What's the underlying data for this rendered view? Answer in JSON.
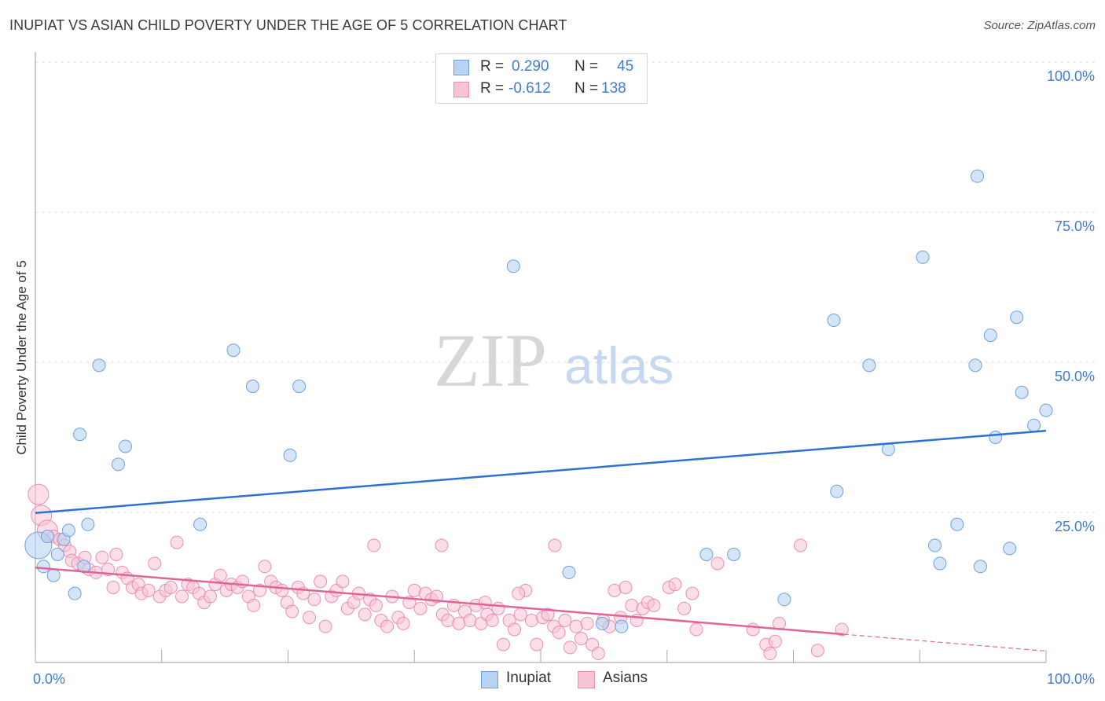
{
  "header": {
    "title": "INUPIAT VS ASIAN CHILD POVERTY UNDER THE AGE OF 5 CORRELATION CHART",
    "source": "Source: ZipAtlas.com"
  },
  "watermark": {
    "zip": "ZIP",
    "atlas": "atlas"
  },
  "legend": {
    "rows": [
      {
        "r_label": "R =",
        "r_value": "0.290",
        "n_label": "N =",
        "n_value": "45"
      },
      {
        "r_label": "R =",
        "r_value": "-0.612",
        "n_label": "N =",
        "n_value": "138"
      }
    ],
    "bottom": [
      {
        "label": "Inupiat"
      },
      {
        "label": "Asians"
      }
    ]
  },
  "colors": {
    "inupiat_fill": "#b8d3f2",
    "inupiat_stroke": "#6fa0dc",
    "inupiat_line": "#2e72cf",
    "asian_fill": "#f8c3d3",
    "asian_stroke": "#ea8fae",
    "asian_line": "#e0649a",
    "tick_text": "#3f7bd4",
    "grid": "#dddddd"
  },
  "chart_data": {
    "type": "scatter",
    "title": "INUPIAT VS ASIAN CHILD POVERTY UNDER THE AGE OF 5 CORRELATION CHART",
    "xlabel": "",
    "ylabel": "Child Poverty Under the Age of 5",
    "xlim": [
      0,
      100
    ],
    "ylim": [
      0,
      100
    ],
    "x_tick_labels": [
      "0.0%",
      "100.0%"
    ],
    "y_ticks": [
      25,
      50,
      75,
      100
    ],
    "y_tick_labels": [
      "25.0%",
      "50.0%",
      "75.0%",
      "100.0%"
    ],
    "grid": true,
    "legend_position": "top-center",
    "series": [
      {
        "name": "Inupiat",
        "r": 0.29,
        "n": 45,
        "trend": {
          "x": [
            0,
            100
          ],
          "y": [
            24.9,
            38.6
          ]
        },
        "points": [
          {
            "x": 0.3,
            "y": 19.5,
            "s": 3
          },
          {
            "x": 0.8,
            "y": 16.0,
            "s": 1
          },
          {
            "x": 1.2,
            "y": 21.0,
            "s": 1
          },
          {
            "x": 1.8,
            "y": 14.5,
            "s": 1
          },
          {
            "x": 2.2,
            "y": 18.0,
            "s": 1
          },
          {
            "x": 2.8,
            "y": 20.5,
            "s": 1
          },
          {
            "x": 3.3,
            "y": 22.0,
            "s": 1
          },
          {
            "x": 3.9,
            "y": 11.5,
            "s": 1
          },
          {
            "x": 4.4,
            "y": 38.0,
            "s": 1
          },
          {
            "x": 4.8,
            "y": 16.0,
            "s": 1
          },
          {
            "x": 5.2,
            "y": 23.0,
            "s": 1
          },
          {
            "x": 6.3,
            "y": 49.5,
            "s": 1
          },
          {
            "x": 8.2,
            "y": 33.0,
            "s": 1
          },
          {
            "x": 8.9,
            "y": 36.0,
            "s": 1
          },
          {
            "x": 16.3,
            "y": 23.0,
            "s": 1
          },
          {
            "x": 19.6,
            "y": 52.0,
            "s": 1
          },
          {
            "x": 21.5,
            "y": 46.0,
            "s": 1
          },
          {
            "x": 25.2,
            "y": 34.5,
            "s": 1
          },
          {
            "x": 26.1,
            "y": 46.0,
            "s": 1
          },
          {
            "x": 47.3,
            "y": 66.0,
            "s": 1
          },
          {
            "x": 52.8,
            "y": 15.0,
            "s": 1
          },
          {
            "x": 56.1,
            "y": 6.5,
            "s": 1
          },
          {
            "x": 58.0,
            "y": 6.0,
            "s": 1
          },
          {
            "x": 66.4,
            "y": 18.0,
            "s": 1
          },
          {
            "x": 69.1,
            "y": 18.0,
            "s": 1
          },
          {
            "x": 74.1,
            "y": 10.5,
            "s": 1
          },
          {
            "x": 79.0,
            "y": 57.0,
            "s": 1
          },
          {
            "x": 79.3,
            "y": 28.5,
            "s": 1
          },
          {
            "x": 82.5,
            "y": 49.5,
            "s": 1
          },
          {
            "x": 84.4,
            "y": 35.5,
            "s": 1
          },
          {
            "x": 87.8,
            "y": 67.5,
            "s": 1
          },
          {
            "x": 89.0,
            "y": 19.5,
            "s": 1
          },
          {
            "x": 89.5,
            "y": 16.5,
            "s": 1
          },
          {
            "x": 91.2,
            "y": 23.0,
            "s": 1
          },
          {
            "x": 93.0,
            "y": 49.5,
            "s": 1
          },
          {
            "x": 93.2,
            "y": 81.0,
            "s": 1
          },
          {
            "x": 93.5,
            "y": 16.0,
            "s": 1
          },
          {
            "x": 94.5,
            "y": 54.5,
            "s": 1
          },
          {
            "x": 95.0,
            "y": 37.5,
            "s": 1
          },
          {
            "x": 96.4,
            "y": 19.0,
            "s": 1
          },
          {
            "x": 97.1,
            "y": 57.5,
            "s": 1
          },
          {
            "x": 97.6,
            "y": 45.0,
            "s": 1
          },
          {
            "x": 98.8,
            "y": 39.5,
            "s": 1
          },
          {
            "x": 100.0,
            "y": 42.0,
            "s": 1
          }
        ]
      },
      {
        "name": "Asians",
        "r": -0.612,
        "n": 138,
        "trend": {
          "x": [
            0,
            80
          ],
          "y": [
            15.8,
            4.7
          ]
        },
        "trend_dashed": {
          "x": [
            80,
            100
          ],
          "y": [
            4.7,
            1.9
          ]
        },
        "points": [
          {
            "x": 0.3,
            "y": 28.0,
            "s": 2
          },
          {
            "x": 0.6,
            "y": 24.5,
            "s": 2
          },
          {
            "x": 1.2,
            "y": 22.0,
            "s": 2
          },
          {
            "x": 1.8,
            "y": 21.0,
            "s": 1
          },
          {
            "x": 2.4,
            "y": 20.5,
            "s": 1
          },
          {
            "x": 2.9,
            "y": 19.5,
            "s": 1
          },
          {
            "x": 3.4,
            "y": 18.5,
            "s": 1
          },
          {
            "x": 3.6,
            "y": 17.0,
            "s": 1
          },
          {
            "x": 4.2,
            "y": 16.5,
            "s": 1
          },
          {
            "x": 4.9,
            "y": 17.5,
            "s": 1
          },
          {
            "x": 5.3,
            "y": 15.5,
            "s": 1
          },
          {
            "x": 6.0,
            "y": 15.0,
            "s": 1
          },
          {
            "x": 6.6,
            "y": 17.5,
            "s": 1
          },
          {
            "x": 7.2,
            "y": 15.5,
            "s": 1
          },
          {
            "x": 7.7,
            "y": 12.5,
            "s": 1
          },
          {
            "x": 8.0,
            "y": 18.0,
            "s": 1
          },
          {
            "x": 8.6,
            "y": 15.0,
            "s": 1
          },
          {
            "x": 9.1,
            "y": 14.0,
            "s": 1
          },
          {
            "x": 9.6,
            "y": 12.5,
            "s": 1
          },
          {
            "x": 10.2,
            "y": 13.0,
            "s": 1
          },
          {
            "x": 10.5,
            "y": 11.5,
            "s": 1
          },
          {
            "x": 11.2,
            "y": 12.0,
            "s": 1
          },
          {
            "x": 11.8,
            "y": 16.5,
            "s": 1
          },
          {
            "x": 12.3,
            "y": 11.0,
            "s": 1
          },
          {
            "x": 12.9,
            "y": 12.0,
            "s": 1
          },
          {
            "x": 13.4,
            "y": 12.5,
            "s": 1
          },
          {
            "x": 14.0,
            "y": 20.0,
            "s": 1
          },
          {
            "x": 14.5,
            "y": 11.0,
            "s": 1
          },
          {
            "x": 15.1,
            "y": 13.0,
            "s": 1
          },
          {
            "x": 15.6,
            "y": 12.5,
            "s": 1
          },
          {
            "x": 16.2,
            "y": 11.5,
            "s": 1
          },
          {
            "x": 16.7,
            "y": 10.0,
            "s": 1
          },
          {
            "x": 17.3,
            "y": 11.0,
            "s": 1
          },
          {
            "x": 17.8,
            "y": 13.0,
            "s": 1
          },
          {
            "x": 18.3,
            "y": 14.5,
            "s": 1
          },
          {
            "x": 18.9,
            "y": 12.0,
            "s": 1
          },
          {
            "x": 19.4,
            "y": 13.0,
            "s": 1
          },
          {
            "x": 20.0,
            "y": 12.5,
            "s": 1
          },
          {
            "x": 20.5,
            "y": 13.5,
            "s": 1
          },
          {
            "x": 21.1,
            "y": 11.0,
            "s": 1
          },
          {
            "x": 21.6,
            "y": 9.5,
            "s": 1
          },
          {
            "x": 22.2,
            "y": 12.0,
            "s": 1
          },
          {
            "x": 22.7,
            "y": 16.0,
            "s": 1
          },
          {
            "x": 23.3,
            "y": 13.5,
            "s": 1
          },
          {
            "x": 23.8,
            "y": 12.5,
            "s": 1
          },
          {
            "x": 24.4,
            "y": 12.0,
            "s": 1
          },
          {
            "x": 24.9,
            "y": 10.0,
            "s": 1
          },
          {
            "x": 25.4,
            "y": 8.5,
            "s": 1
          },
          {
            "x": 26.0,
            "y": 12.5,
            "s": 1
          },
          {
            "x": 26.5,
            "y": 11.5,
            "s": 1
          },
          {
            "x": 27.1,
            "y": 7.5,
            "s": 1
          },
          {
            "x": 27.6,
            "y": 10.5,
            "s": 1
          },
          {
            "x": 28.2,
            "y": 13.5,
            "s": 1
          },
          {
            "x": 28.7,
            "y": 6.0,
            "s": 1
          },
          {
            "x": 29.3,
            "y": 11.0,
            "s": 1
          },
          {
            "x": 29.8,
            "y": 12.0,
            "s": 1
          },
          {
            "x": 30.4,
            "y": 13.5,
            "s": 1
          },
          {
            "x": 30.9,
            "y": 9.0,
            "s": 1
          },
          {
            "x": 31.5,
            "y": 10.0,
            "s": 1
          },
          {
            "x": 32.0,
            "y": 11.5,
            "s": 1
          },
          {
            "x": 32.6,
            "y": 8.0,
            "s": 1
          },
          {
            "x": 33.1,
            "y": 10.5,
            "s": 1
          },
          {
            "x": 33.7,
            "y": 9.5,
            "s": 1
          },
          {
            "x": 34.2,
            "y": 7.0,
            "s": 1
          },
          {
            "x": 34.8,
            "y": 6.0,
            "s": 1
          },
          {
            "x": 35.3,
            "y": 11.0,
            "s": 1
          },
          {
            "x": 35.9,
            "y": 7.5,
            "s": 1
          },
          {
            "x": 36.4,
            "y": 6.5,
            "s": 1
          },
          {
            "x": 37.0,
            "y": 10.0,
            "s": 1
          },
          {
            "x": 37.5,
            "y": 12.0,
            "s": 1
          },
          {
            "x": 38.1,
            "y": 9.0,
            "s": 1
          },
          {
            "x": 38.6,
            "y": 11.5,
            "s": 1
          },
          {
            "x": 39.2,
            "y": 10.5,
            "s": 1
          },
          {
            "x": 39.7,
            "y": 11.0,
            "s": 1
          },
          {
            "x": 40.3,
            "y": 8.0,
            "s": 1
          },
          {
            "x": 40.8,
            "y": 7.0,
            "s": 1
          },
          {
            "x": 41.4,
            "y": 9.5,
            "s": 1
          },
          {
            "x": 41.9,
            "y": 6.5,
            "s": 1
          },
          {
            "x": 42.5,
            "y": 8.5,
            "s": 1
          },
          {
            "x": 43.0,
            "y": 7.0,
            "s": 1
          },
          {
            "x": 43.6,
            "y": 9.5,
            "s": 1
          },
          {
            "x": 44.1,
            "y": 6.5,
            "s": 1
          },
          {
            "x": 44.7,
            "y": 8.0,
            "s": 1
          },
          {
            "x": 45.2,
            "y": 7.0,
            "s": 1
          },
          {
            "x": 45.8,
            "y": 9.0,
            "s": 1
          },
          {
            "x": 46.3,
            "y": 3.0,
            "s": 1
          },
          {
            "x": 46.9,
            "y": 7.0,
            "s": 1
          },
          {
            "x": 47.4,
            "y": 5.5,
            "s": 1
          },
          {
            "x": 48.0,
            "y": 8.0,
            "s": 1
          },
          {
            "x": 48.5,
            "y": 12.0,
            "s": 1
          },
          {
            "x": 49.1,
            "y": 7.0,
            "s": 1
          },
          {
            "x": 49.6,
            "y": 3.0,
            "s": 1
          },
          {
            "x": 50.2,
            "y": 7.5,
            "s": 1
          },
          {
            "x": 50.7,
            "y": 8.0,
            "s": 1
          },
          {
            "x": 51.3,
            "y": 6.0,
            "s": 1
          },
          {
            "x": 51.8,
            "y": 5.0,
            "s": 1
          },
          {
            "x": 52.4,
            "y": 7.0,
            "s": 1
          },
          {
            "x": 52.9,
            "y": 2.5,
            "s": 1
          },
          {
            "x": 53.5,
            "y": 6.0,
            "s": 1
          },
          {
            "x": 54.0,
            "y": 4.0,
            "s": 1
          },
          {
            "x": 54.6,
            "y": 6.5,
            "s": 1
          },
          {
            "x": 55.1,
            "y": 3.0,
            "s": 1
          },
          {
            "x": 55.7,
            "y": 1.5,
            "s": 1
          },
          {
            "x": 56.2,
            "y": 7.0,
            "s": 1
          },
          {
            "x": 56.8,
            "y": 6.0,
            "s": 1
          },
          {
            "x": 57.3,
            "y": 12.0,
            "s": 1
          },
          {
            "x": 57.9,
            "y": 7.5,
            "s": 1
          },
          {
            "x": 58.4,
            "y": 12.5,
            "s": 1
          },
          {
            "x": 59.0,
            "y": 9.5,
            "s": 1
          },
          {
            "x": 59.5,
            "y": 7.0,
            "s": 1
          },
          {
            "x": 60.1,
            "y": 9.0,
            "s": 1
          },
          {
            "x": 60.6,
            "y": 10.0,
            "s": 1
          },
          {
            "x": 61.2,
            "y": 9.5,
            "s": 1
          },
          {
            "x": 62.7,
            "y": 12.5,
            "s": 1
          },
          {
            "x": 63.3,
            "y": 13.0,
            "s": 1
          },
          {
            "x": 64.2,
            "y": 9.0,
            "s": 1
          },
          {
            "x": 65.0,
            "y": 11.5,
            "s": 1
          },
          {
            "x": 65.4,
            "y": 5.5,
            "s": 1
          },
          {
            "x": 67.5,
            "y": 16.5,
            "s": 1
          },
          {
            "x": 71.0,
            "y": 5.5,
            "s": 1
          },
          {
            "x": 72.3,
            "y": 3.0,
            "s": 1
          },
          {
            "x": 72.7,
            "y": 1.5,
            "s": 1
          },
          {
            "x": 73.2,
            "y": 3.5,
            "s": 1
          },
          {
            "x": 73.6,
            "y": 6.5,
            "s": 1
          },
          {
            "x": 75.7,
            "y": 19.5,
            "s": 1
          },
          {
            "x": 77.4,
            "y": 2.0,
            "s": 1
          },
          {
            "x": 79.8,
            "y": 5.5,
            "s": 1
          },
          {
            "x": 33.5,
            "y": 19.5,
            "s": 1
          },
          {
            "x": 40.2,
            "y": 19.5,
            "s": 1
          },
          {
            "x": 51.4,
            "y": 19.5,
            "s": 1
          },
          {
            "x": 47.8,
            "y": 11.5,
            "s": 1
          },
          {
            "x": 44.5,
            "y": 10.0,
            "s": 1
          }
        ]
      }
    ]
  }
}
